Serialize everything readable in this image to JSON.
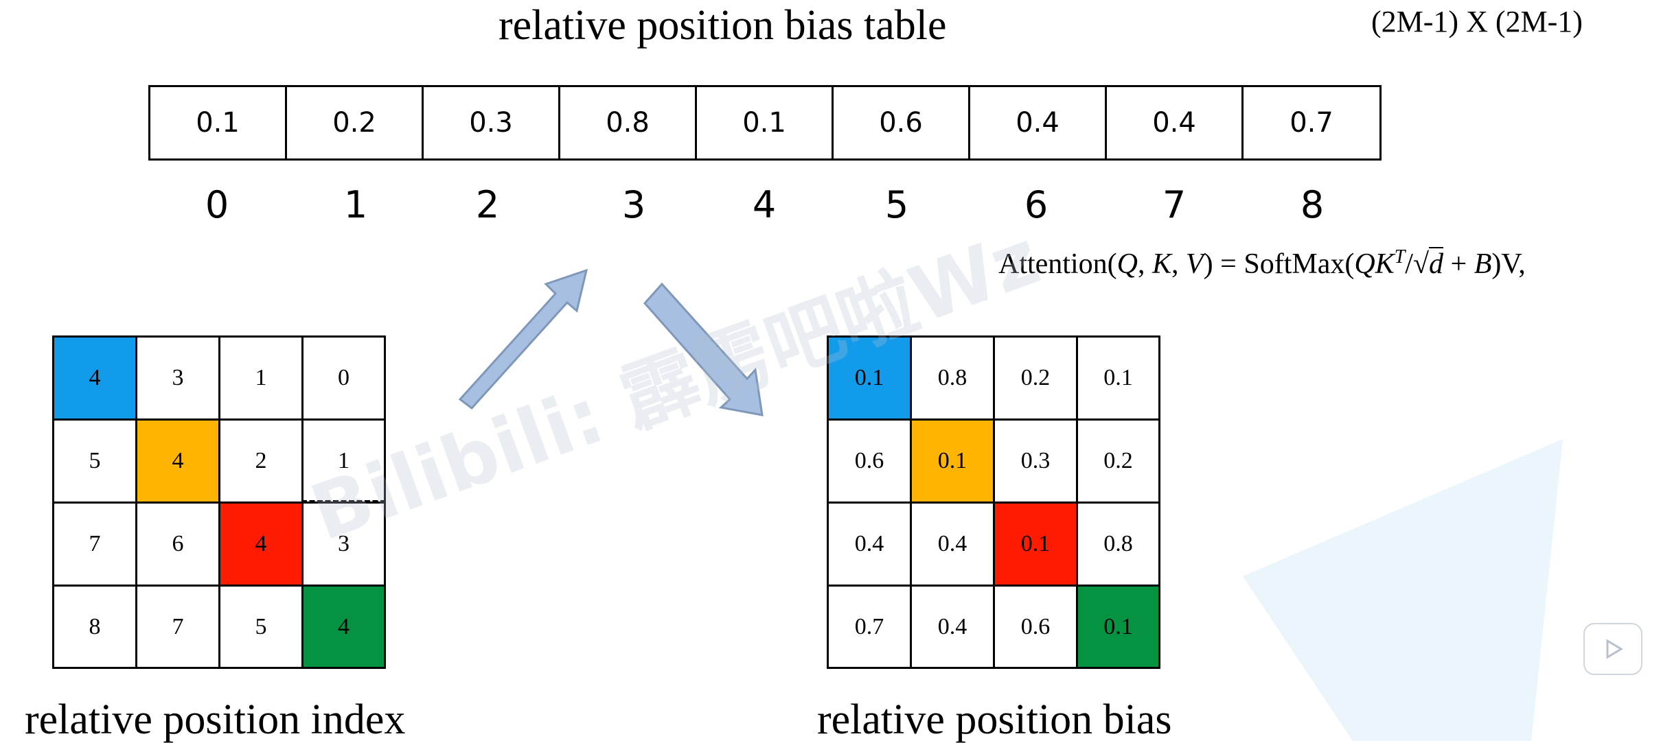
{
  "title": "relative position bias table",
  "dims_label": "(2M-1) X (2M-1)",
  "bias_table": {
    "values": [
      "0.1",
      "0.2",
      "0.3",
      "0.8",
      "0.1",
      "0.6",
      "0.4",
      "0.4",
      "0.7"
    ],
    "indices": [
      "0",
      "1",
      "2",
      "3",
      "4",
      "5",
      "6",
      "7",
      "8"
    ]
  },
  "formula": {
    "prefix": "Attention(",
    "q": "Q",
    "k": "K",
    "v": "V",
    "mid": ") = SoftMax(",
    "qk": "QK",
    "t": "T",
    "slash": "/",
    "sqrt": "√",
    "d": "d",
    "plus": " + ",
    "b": "B",
    "suffix": ")V,"
  },
  "index_grid": {
    "label": "relative position index",
    "cells": [
      [
        "4",
        "3",
        "1",
        "0"
      ],
      [
        "5",
        "4",
        "2",
        "1"
      ],
      [
        "7",
        "6",
        "4",
        "3"
      ],
      [
        "8",
        "7",
        "5",
        "4"
      ]
    ]
  },
  "bias_grid": {
    "label": "relative position bias",
    "cells": [
      [
        "0.1",
        "0.8",
        "0.2",
        "0.1"
      ],
      [
        "0.6",
        "0.1",
        "0.3",
        "0.2"
      ],
      [
        "0.4",
        "0.4",
        "0.1",
        "0.8"
      ],
      [
        "0.7",
        "0.4",
        "0.6",
        "0.1"
      ]
    ]
  },
  "highlight_colors": {
    "blue": "#129bea",
    "orange": "#feb400",
    "red": "#fd1c01",
    "green": "#059342"
  },
  "watermark": "Bilibili: 霹雳吧啦Wz"
}
